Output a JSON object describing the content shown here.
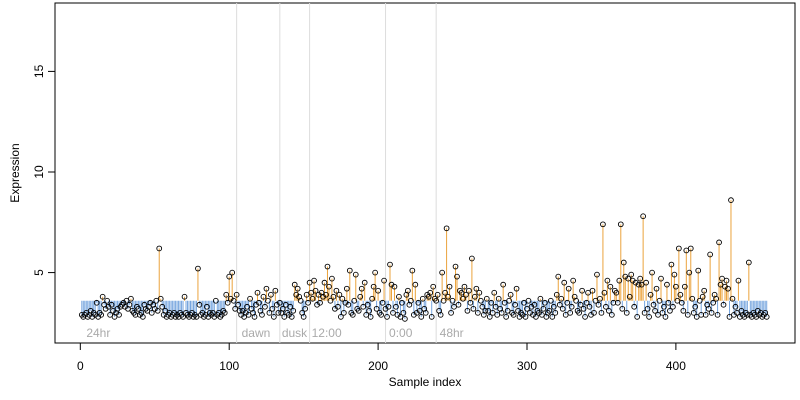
{
  "chart_data": {
    "type": "lollipop",
    "x_label": "Sample index",
    "y_label": "Expression",
    "xlim": [
      -17,
      480
    ],
    "ylim": [
      1.5,
      18.4
    ],
    "xticks": [
      0,
      100,
      200,
      300,
      400
    ],
    "yticks": [
      5,
      10,
      15
    ],
    "baseline": 3.6,
    "above_color": "#eba33c",
    "below_color": "#76a5de",
    "marker_lines": [
      105,
      134,
      154,
      205,
      239
    ],
    "annotations": [
      {
        "label": "24hr",
        "x": 2.7
      },
      {
        "label": "dawn",
        "x": 107
      },
      {
        "label": "dusk",
        "x": 134
      },
      {
        "label": "12:00",
        "x": 154
      },
      {
        "label": "0:00",
        "x": 206
      },
      {
        "label": "48hr",
        "x": 240
      }
    ],
    "values": [
      2.9,
      2.8,
      2.9,
      3.0,
      2.8,
      2.9,
      3.1,
      2.8,
      3.0,
      2.9,
      3.5,
      2.8,
      3.0,
      2.9,
      3.8,
      3.4,
      3.2,
      3.6,
      3.3,
      2.9,
      3.4,
      3.1,
      2.8,
      3.0,
      3.2,
      2.9,
      3.3,
      3.4,
      3.5,
      3.3,
      3.6,
      3.2,
      3.4,
      3.7,
      3.1,
      3.0,
      2.9,
      3.3,
      3.2,
      2.9,
      3.0,
      2.8,
      3.4,
      3.2,
      3.1,
      3.3,
      3.5,
      3.0,
      3.4,
      3.2,
      3.6,
      3.1,
      6.2,
      3.7,
      3.3,
      2.9,
      3.1,
      2.8,
      2.9,
      3.0,
      2.8,
      2.9,
      3.0,
      2.8,
      2.9,
      2.8,
      3.0,
      2.9,
      2.8,
      3.8,
      3.0,
      2.9,
      2.8,
      2.9,
      3.0,
      2.8,
      2.9,
      2.8,
      5.2,
      3.4,
      2.9,
      3.0,
      2.8,
      2.9,
      3.3,
      2.8,
      3.0,
      2.9,
      3.0,
      2.8,
      3.6,
      2.9,
      3.0,
      2.8,
      2.9,
      3.1,
      3.0,
      3.9,
      3.5,
      4.8,
      3.7,
      5.0,
      3.6,
      3.2,
      3.9,
      3.4,
      3.1,
      2.9,
      3.1,
      2.8,
      3.0,
      3.3,
      2.9,
      3.7,
      3.2,
      3.0,
      2.8,
      3.4,
      4.0,
      3.5,
      3.1,
      2.9,
      3.8,
      3.3,
      4.2,
      3.6,
      3.0,
      3.9,
      3.2,
      2.8,
      4.1,
      3.4,
      3.0,
      3.5,
      3.0,
      3.2,
      2.8,
      3.4,
      3.0,
      2.9,
      3.3,
      2.8,
      3.1,
      4.4,
      3.9,
      4.2,
      3.8,
      3.6,
      3.0,
      2.8,
      3.2,
      3.9,
      3.5,
      4.5,
      4.0,
      3.7,
      4.6,
      4.1,
      3.4,
      3.9,
      3.5,
      4.0,
      3.8,
      4.5,
      3.9,
      5.3,
      4.3,
      3.6,
      4.7,
      3.8,
      3.2,
      4.1,
      3.3,
      3.9,
      2.8,
      3.7,
      3.0,
      3.5,
      4.2,
      3.4,
      5.1,
      3.0,
      2.9,
      3.6,
      4.9,
      3.2,
      3.1,
      3.8,
      4.2,
      3.3,
      4.5,
      2.9,
      3.4,
      3.1,
      2.8,
      3.7,
      4.3,
      5.0,
      3.2,
      4.1,
      3.0,
      2.9,
      3.5,
      4.6,
      3.2,
      2.8,
      3.3,
      5.4,
      4.4,
      3.0,
      4.3,
      3.3,
      2.9,
      3.8,
      2.8,
      3.5,
      3.0,
      2.7,
      3.9,
      4.1,
      3.4,
      3.6,
      5.1,
      2.9,
      4.4,
      3.0,
      3.5,
      3.1,
      2.8,
      3.7,
      3.2,
      3.0,
      3.9,
      3.8,
      4.0,
      2.8,
      4.3,
      3.7,
      3.6,
      3.9,
      3.1,
      2.9,
      5.0,
      3.6,
      4.0,
      7.2,
      3.8,
      4.3,
      3.0,
      3.6,
      3.3,
      5.3,
      4.8,
      3.4,
      4.1,
      4.0,
      3.7,
      4.3,
      3.9,
      3.1,
      4.1,
      3.5,
      5.7,
      3.2,
      3.8,
      4.2,
      3.0,
      4.0,
      3.6,
      3.3,
      2.9,
      3.1,
      3.7,
      3.1,
      2.8,
      3.5,
      3.0,
      4.0,
      3.3,
      2.9,
      3.7,
      3.2,
      3.0,
      4.4,
      3.5,
      2.8,
      3.1,
      3.6,
      3.9,
      3.0,
      2.9,
      3.4,
      4.2,
      3.1,
      2.8,
      3.0,
      2.9,
      3.5,
      2.8,
      3.2,
      3.6,
      3.0,
      3.3,
      2.9,
      3.4,
      2.8,
      3.1,
      3.0,
      3.7,
      2.9,
      3.2,
      3.5,
      2.8,
      3.0,
      3.1,
      3.6,
      2.8,
      3.3,
      3.0,
      3.9,
      4.8,
      3.4,
      3.7,
      3.2,
      4.5,
      2.9,
      3.5,
      4.2,
      3.0,
      3.3,
      4.6,
      3.8,
      3.6,
      3.1,
      3.0,
      3.4,
      4.1,
      3.2,
      2.8,
      3.5,
      4.0,
      3.3,
      2.9,
      4.1,
      3.0,
      3.6,
      4.9,
      3.4,
      3.7,
      3.0,
      7.4,
      4.0,
      3.3,
      4.6,
      3.1,
      4.3,
      2.9,
      3.5,
      4.1,
      4.0,
      3.5,
      4.6,
      7.4,
      3.2,
      5.5,
      4.8,
      3.0,
      4.7,
      3.8,
      4.9,
      4.6,
      3.3,
      4.5,
      2.8,
      4.4,
      4.7,
      4.4,
      7.8,
      3.0,
      4.5,
      3.2,
      2.8,
      3.9,
      5.0,
      3.4,
      3.1,
      4.2,
      2.9,
      3.6,
      4.7,
      3.0,
      3.3,
      2.8,
      4.4,
      3.5,
      3.1,
      5.4,
      3.3,
      4.9,
      4.3,
      3.6,
      6.2,
      3.9,
      3.5,
      3.1,
      4.3,
      6.1,
      2.9,
      5.0,
      6.2,
      3.7,
      3.0,
      3.3,
      2.8,
      5.1,
      3.6,
      2.9,
      3.8,
      4.1,
      2.9,
      3.4,
      3.2,
      5.9,
      3.0,
      3.5,
      3.9,
      3.7,
      2.9,
      6.5,
      4.4,
      4.7,
      3.4,
      4.3,
      4.6,
      4.2,
      2.8,
      8.6,
      3.7,
      2.9,
      3.3,
      3.0,
      4.6,
      2.8,
      3.1,
      2.9,
      2.8,
      3.0,
      2.9,
      5.5,
      2.9,
      2.8,
      3.0,
      2.9,
      2.8,
      3.1,
      2.9,
      3.0,
      2.8,
      2.9,
      3.0,
      2.8
    ]
  }
}
